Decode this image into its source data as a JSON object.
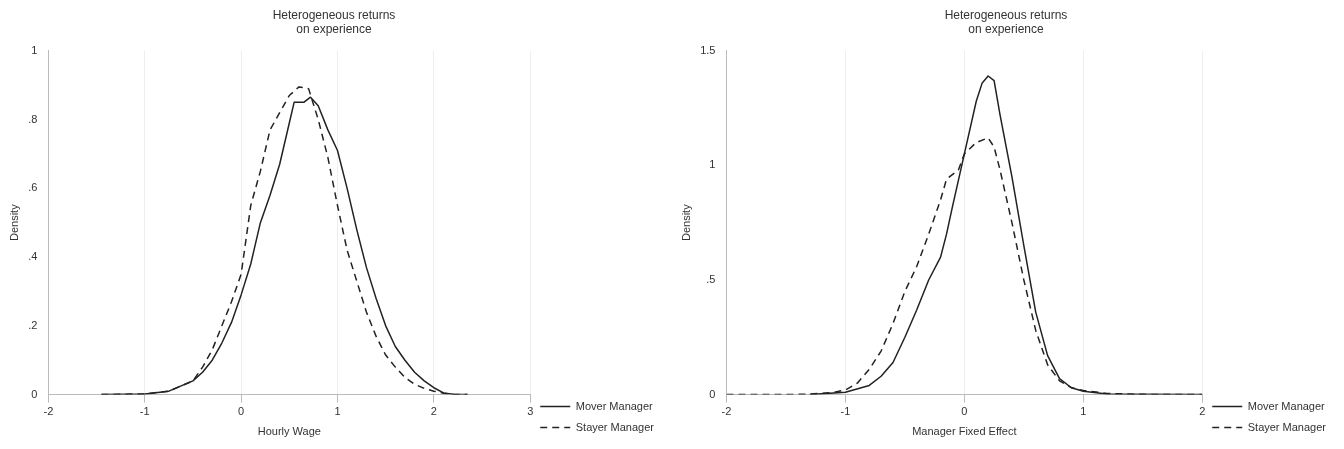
{
  "chart_data": [
    {
      "type": "line",
      "title": "Heterogeneous returns\non experience",
      "xlabel": "Hourly Wage",
      "ylabel": "Density",
      "xlim": [
        -2,
        3
      ],
      "xticks": [
        -2,
        -1,
        0,
        1,
        2,
        3
      ],
      "ylim": [
        0,
        1
      ],
      "yticks": [
        0,
        {
          "value": 0.2,
          "label": ".2"
        },
        {
          "value": 0.4,
          "label": ".4"
        },
        {
          "value": 0.6,
          "label": ".6"
        },
        {
          "value": 0.8,
          "label": ".8"
        },
        1
      ],
      "grid": "x",
      "legend": "bottom right",
      "marker": "none",
      "series": [
        {
          "name": "Mover Manager",
          "color": "#222222",
          "line_style": "solid",
          "x": [
            -1.45,
            -1,
            -0.75,
            -0.5,
            -0.4,
            -0.3,
            -0.2,
            -0.1,
            0,
            0.1,
            0.2,
            0.3,
            0.4,
            0.5,
            0.55,
            0.65,
            0.72,
            0.8,
            0.9,
            1,
            1.1,
            1.2,
            1.3,
            1.4,
            1.5,
            1.6,
            1.7,
            1.8,
            1.9,
            2,
            2.1,
            2.2,
            2.35
          ],
          "values": [
            0,
            0.002,
            0.01,
            0.04,
            0.065,
            0.1,
            0.15,
            0.21,
            0.29,
            0.38,
            0.5,
            0.58,
            0.67,
            0.79,
            0.85,
            0.85,
            0.865,
            0.84,
            0.77,
            0.71,
            0.6,
            0.48,
            0.37,
            0.28,
            0.2,
            0.14,
            0.1,
            0.065,
            0.04,
            0.02,
            0.005,
            0.001,
            0
          ]
        },
        {
          "name": "Stayer Manager",
          "color": "#222222",
          "line_style": "dashed",
          "x": [
            -1.45,
            -1,
            -0.75,
            -0.5,
            -0.4,
            -0.3,
            -0.2,
            -0.1,
            0,
            0.05,
            0.1,
            0.2,
            0.3,
            0.4,
            0.5,
            0.6,
            0.7,
            0.8,
            0.9,
            1,
            1.1,
            1.2,
            1.3,
            1.4,
            1.5,
            1.6,
            1.7,
            1.8,
            1.9,
            2,
            2.1,
            2.2,
            2.35
          ],
          "values": [
            0,
            0.002,
            0.01,
            0.04,
            0.08,
            0.13,
            0.2,
            0.27,
            0.35,
            0.45,
            0.55,
            0.65,
            0.77,
            0.82,
            0.87,
            0.895,
            0.89,
            0.8,
            0.69,
            0.55,
            0.42,
            0.33,
            0.24,
            0.17,
            0.115,
            0.08,
            0.05,
            0.03,
            0.018,
            0.01,
            0.004,
            0.001,
            0
          ]
        }
      ]
    },
    {
      "type": "line",
      "title": "Heterogeneous returns\non experience",
      "xlabel": "Manager Fixed Effect",
      "ylabel": "Density",
      "xlim": [
        -2,
        2
      ],
      "xticks": [
        -2,
        -1,
        0,
        1,
        2
      ],
      "ylim": [
        0,
        1.5
      ],
      "yticks": [
        0,
        {
          "value": 0.5,
          "label": ".5"
        },
        1,
        1.5
      ],
      "grid": "x",
      "legend": "bottom right",
      "marker": "none",
      "series": [
        {
          "name": "Mover Manager",
          "color": "#222222",
          "line_style": "solid",
          "x": [
            -1.3,
            -1,
            -0.8,
            -0.7,
            -0.6,
            -0.5,
            -0.4,
            -0.3,
            -0.2,
            -0.15,
            -0.1,
            0,
            0.1,
            0.15,
            0.2,
            0.25,
            0.3,
            0.4,
            0.5,
            0.6,
            0.7,
            0.8,
            0.9,
            1,
            1.2,
            1.5,
            2
          ],
          "values": [
            0,
            0.01,
            0.04,
            0.08,
            0.14,
            0.25,
            0.37,
            0.5,
            0.6,
            0.7,
            0.82,
            1.05,
            1.28,
            1.36,
            1.39,
            1.37,
            1.22,
            0.95,
            0.65,
            0.36,
            0.17,
            0.07,
            0.03,
            0.015,
            0.003,
            0.001,
            0
          ]
        },
        {
          "name": "Stayer Manager",
          "color": "#222222",
          "line_style": "dashed",
          "x": [
            -2,
            -1.5,
            -1.3,
            -1.1,
            -1,
            -0.9,
            -0.8,
            -0.7,
            -0.6,
            -0.5,
            -0.4,
            -0.3,
            -0.2,
            -0.15,
            -0.05,
            0,
            0.1,
            0.2,
            0.25,
            0.3,
            0.4,
            0.5,
            0.6,
            0.7,
            0.8,
            0.9,
            1,
            1.2,
            1.5,
            2
          ],
          "values": [
            0,
            0,
            0.002,
            0.01,
            0.02,
            0.05,
            0.11,
            0.19,
            0.31,
            0.45,
            0.56,
            0.7,
            0.85,
            0.94,
            0.98,
            1.05,
            1.1,
            1.12,
            1.08,
            0.98,
            0.75,
            0.5,
            0.28,
            0.13,
            0.06,
            0.03,
            0.018,
            0.005,
            0.001,
            0
          ]
        }
      ]
    }
  ]
}
